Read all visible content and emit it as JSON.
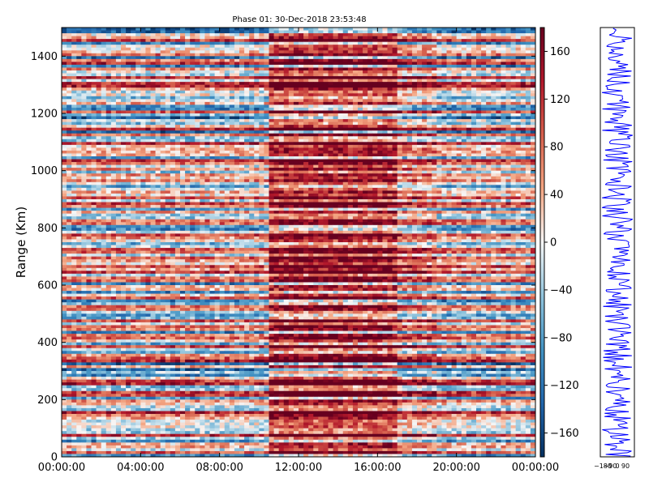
{
  "chart_data": {
    "type": "heatmap",
    "title": "Phase 01: 30-Dec-2018 23:53:48",
    "ylabel": "Range (Km)",
    "xlabel": "",
    "x_ticks": [
      "00:00:00",
      "04:00:00",
      "08:00:00",
      "12:00:00",
      "16:00:00",
      "20:00:00",
      "00:00:00"
    ],
    "x_range_hours": [
      0,
      24
    ],
    "y_ticks": [
      0,
      200,
      400,
      600,
      800,
      1000,
      1200,
      1400
    ],
    "ylim": [
      0,
      1500
    ],
    "colorbar": {
      "ticks": [
        160,
        120,
        80,
        40,
        0,
        -40,
        -80,
        -120,
        -160
      ],
      "tick_labels": [
        "160",
        "120",
        "80",
        "40",
        "0",
        "−40",
        "−80",
        "−120",
        "−160"
      ],
      "range": [
        -180,
        180
      ],
      "colormap": "RdBu_r",
      "color_stops": [
        "#053061",
        "#2166ac",
        "#4393c3",
        "#92c5de",
        "#f7f7f7",
        "#f4a582",
        "#d6604d",
        "#b2182b",
        "#67001f"
      ]
    },
    "grid": false,
    "field_description": "phase in degrees vs time (x) and range (y); horizontal banding by range gate, redder (positive phase) between about 10:30 and 17:00"
  },
  "side_panel": {
    "type": "profile",
    "x_tick_labels": [
      "−180",
      "−90",
      "0",
      "90"
    ],
    "line_color": "#0000ff"
  }
}
